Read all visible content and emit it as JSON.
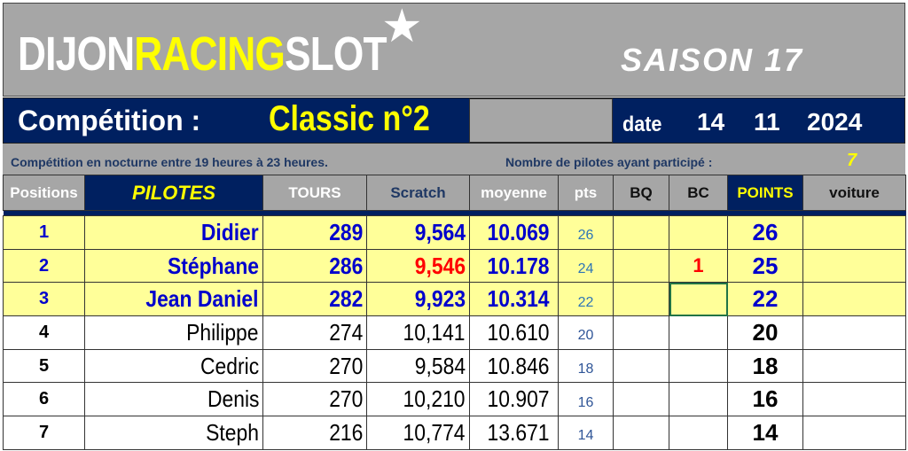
{
  "header": {
    "logo_part1": "DIJON",
    "logo_part2": "RACING",
    "logo_part3": "SLOT",
    "season": "SAISON 17",
    "star_icon": "star-icon"
  },
  "competition": {
    "label": "Compétition :",
    "name": "Classic n°2",
    "date_label": "date",
    "day": "14",
    "month": "11",
    "year": "2024"
  },
  "info": {
    "note": "Compétition en nocturne entre 19 heures à 23 heures.",
    "participants_label": "Nombre de pilotes ayant participé :",
    "participants": "7"
  },
  "columns": [
    "Positions",
    "PILOTES",
    "TOURS",
    "Scratch",
    "moyenne",
    "pts",
    "BQ",
    "BC",
    "POINTS",
    "voiture"
  ],
  "rows": [
    {
      "pos": "1",
      "pilote": "Didier",
      "tours": "289",
      "scratch": "9,564",
      "moyenne": "10.069",
      "pts": "26",
      "bq": "",
      "bc": "",
      "points": "26",
      "voiture": ""
    },
    {
      "pos": "2",
      "pilote": "Stéphane",
      "tours": "286",
      "scratch": "9,546",
      "moyenne": "10.178",
      "pts": "24",
      "bq": "",
      "bc": "1",
      "points": "25",
      "voiture": ""
    },
    {
      "pos": "3",
      "pilote": "Jean Daniel",
      "tours": "282",
      "scratch": "9,923",
      "moyenne": "10.314",
      "pts": "22",
      "bq": "",
      "bc": "",
      "points": "22",
      "voiture": ""
    },
    {
      "pos": "4",
      "pilote": "Philippe",
      "tours": "274",
      "scratch": "10,141",
      "moyenne": "10.610",
      "pts": "20",
      "bq": "",
      "bc": "",
      "points": "20",
      "voiture": ""
    },
    {
      "pos": "5",
      "pilote": "Cedric",
      "tours": "270",
      "scratch": "9,584",
      "moyenne": "10.846",
      "pts": "18",
      "bq": "",
      "bc": "",
      "points": "18",
      "voiture": ""
    },
    {
      "pos": "6",
      "pilote": "Denis",
      "tours": "270",
      "scratch": "10,210",
      "moyenne": "10.907",
      "pts": "16",
      "bq": "",
      "bc": "",
      "points": "16",
      "voiture": ""
    },
    {
      "pos": "7",
      "pilote": "Steph",
      "tours": "216",
      "scratch": "10,774",
      "moyenne": "13.671",
      "pts": "14",
      "bq": "",
      "bc": "",
      "points": "14",
      "voiture": ""
    }
  ],
  "colors": {
    "navy": "#002060",
    "gray": "#a6a6a6",
    "highlight": "#ffff99",
    "accent_yellow": "#ffff00",
    "best_red": "#ff0000",
    "top_blue": "#0000cc"
  },
  "best_scratch_row": 1,
  "selected_cell": {
    "row": 2,
    "column": "BC"
  }
}
